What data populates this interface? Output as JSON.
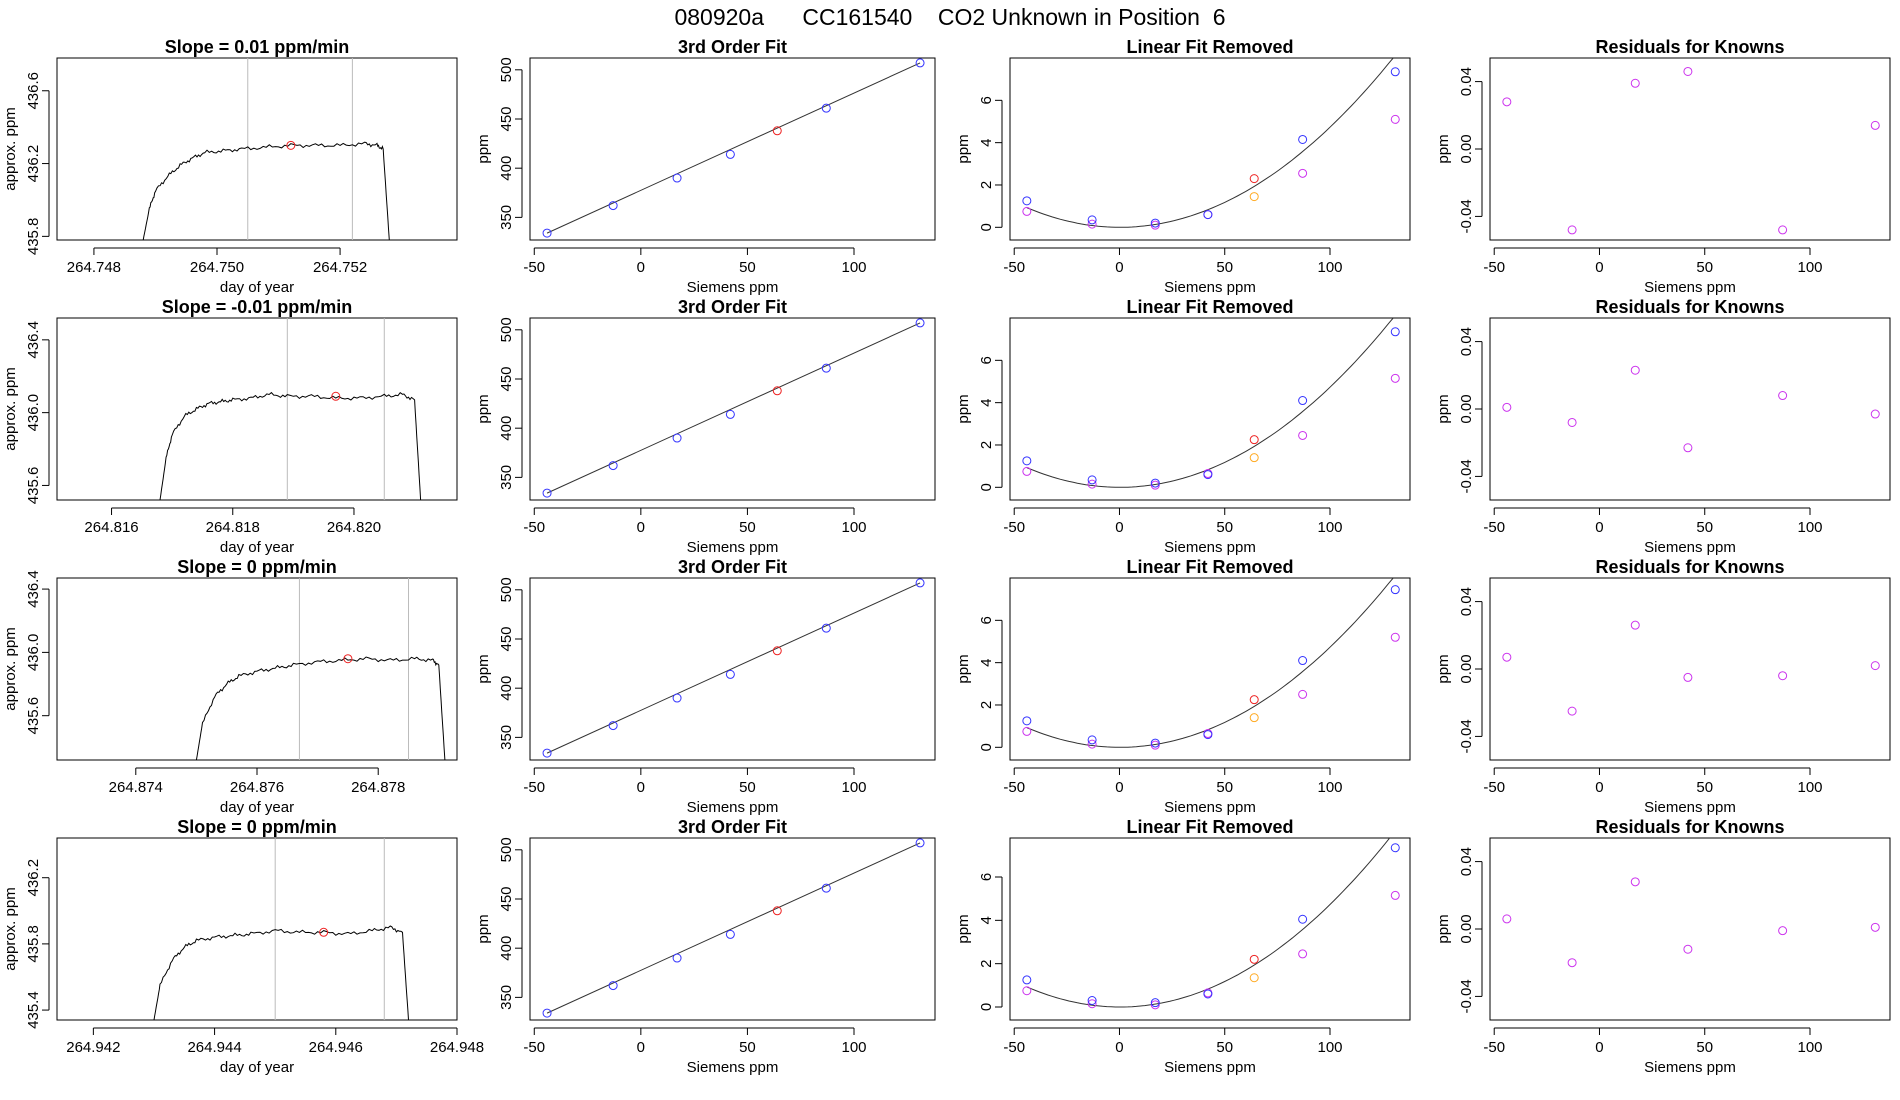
{
  "page": {
    "title": "080920a      CC161540    CO2 Unknown in Position  6"
  },
  "colors": {
    "axis": "#000000",
    "curve": "#333333",
    "vline": "#bbbbbb",
    "blue": "#3333ff",
    "red": "#ee2222",
    "magenta": "#cc33ee",
    "orange": "#ffaa22"
  },
  "chart_data": [
    {
      "type": "line",
      "panel": "time",
      "title": "Slope =  0.01  ppm/min",
      "xlabel": "day of year",
      "ylabel": "approx. ppm",
      "xlim": [
        264.7474,
        264.7539
      ],
      "ylim": [
        435.78,
        436.78
      ],
      "xticks": [
        264.748,
        264.75,
        264.752
      ],
      "xticklabels": [
        "264.748",
        "264.750",
        "264.752"
      ],
      "yticks": [
        435.8,
        436.2,
        436.6
      ],
      "yticklabels": [
        "435.8",
        "436.2",
        "436.6"
      ],
      "vlines": [
        264.7505,
        264.7522
      ],
      "marker": [
        264.7512,
        436.3
      ],
      "x": [
        264.7488,
        264.7489,
        264.749,
        264.7492,
        264.7494,
        264.7496,
        264.7498,
        264.7501,
        264.7504,
        264.7508,
        264.7512,
        264.7516,
        264.752,
        264.7524,
        264.7526,
        264.7527,
        264.7528
      ],
      "y": [
        435.78,
        435.95,
        436.05,
        436.13,
        436.19,
        436.23,
        436.26,
        436.27,
        436.28,
        436.29,
        436.3,
        436.3,
        436.3,
        436.31,
        436.3,
        436.28,
        435.78
      ]
    },
    {
      "type": "scatter",
      "panel": "fit",
      "title": "3rd Order Fit",
      "xlabel": "Siemens ppm",
      "ylabel": "ppm",
      "xlim": [
        -52,
        138
      ],
      "ylim": [
        327,
        512
      ],
      "xticks": [
        -50,
        0,
        50,
        100
      ],
      "yticks": [
        350,
        400,
        450,
        500
      ],
      "knowns": {
        "x": [
          -44,
          -13,
          17,
          42,
          87,
          131
        ],
        "y": [
          334,
          362,
          390,
          414,
          461,
          507
        ]
      },
      "unknown": {
        "x": [
          64
        ],
        "y": [
          438
        ]
      },
      "fit_x": [
        -44,
        131
      ],
      "fit_y": [
        334,
        507
      ]
    },
    {
      "type": "scatter",
      "panel": "linfit",
      "title": "Linear Fit Removed",
      "xlabel": "Siemens ppm",
      "ylabel": "ppm",
      "xlim": [
        -52,
        138
      ],
      "ylim": [
        -0.6,
        8.0
      ],
      "xticks": [
        -50,
        0,
        50,
        100
      ],
      "yticks": [
        0,
        2,
        4,
        6
      ],
      "knowns": {
        "x": [
          -44,
          -13,
          17,
          42,
          87,
          131
        ],
        "y": [
          1.25,
          0.35,
          0.2,
          0.6,
          4.15,
          7.35
        ]
      },
      "magenta": {
        "x": [
          -44,
          -13,
          17,
          42,
          87,
          131
        ],
        "y": [
          0.75,
          0.15,
          0.1,
          0.6,
          2.55,
          5.1
        ]
      },
      "unknown": {
        "x": [
          64
        ],
        "y": [
          2.3
        ]
      },
      "orange": {
        "x": [
          64
        ],
        "y": [
          1.45
        ]
      },
      "curve": {
        "a": 0.000475,
        "b": -0.0002,
        "c": 0
      }
    },
    {
      "type": "scatter",
      "panel": "resid",
      "title": "Residuals for Knowns",
      "xlabel": "Siemens ppm",
      "ylabel": "ppm",
      "xlim": [
        -52,
        138
      ],
      "ylim": [
        -0.054,
        0.054
      ],
      "xticks": [
        -50,
        0,
        50,
        100
      ],
      "yticks": [
        -0.04,
        0.0,
        0.04
      ],
      "yticklabels": [
        "-0.04",
        "0.00",
        "0.04"
      ],
      "x": [
        -44,
        -13,
        17,
        42,
        87,
        131
      ],
      "y": [
        0.028,
        -0.048,
        0.039,
        0.046,
        -0.048,
        0.014
      ]
    },
    {
      "type": "line",
      "panel": "time",
      "title": "Slope =  -0.01  ppm/min",
      "xlabel": "day of year",
      "ylabel": "approx. ppm",
      "xlim": [
        264.8151,
        264.8217
      ],
      "ylim": [
        435.52,
        436.52
      ],
      "xticks": [
        264.816,
        264.818,
        264.82
      ],
      "xticklabels": [
        "264.816",
        "264.818",
        "264.820"
      ],
      "yticks": [
        435.6,
        436.0,
        436.4
      ],
      "yticklabels": [
        "435.6",
        "436.0",
        "436.4"
      ],
      "vlines": [
        264.8189,
        264.8205
      ],
      "marker": [
        264.8197,
        436.09
      ],
      "x": [
        264.8168,
        264.8169,
        264.817,
        264.8172,
        264.8174,
        264.8176,
        264.8178,
        264.818,
        264.8183,
        264.8186,
        264.8189,
        264.8193,
        264.8197,
        264.8201,
        264.8205,
        264.8208,
        264.821,
        264.8211
      ],
      "y": [
        435.52,
        435.75,
        435.88,
        435.98,
        436.02,
        436.05,
        436.06,
        436.07,
        436.08,
        436.1,
        436.09,
        436.09,
        436.08,
        436.08,
        436.09,
        436.1,
        436.07,
        435.52
      ]
    },
    {
      "type": "scatter",
      "panel": "fit",
      "title": "3rd Order Fit",
      "xlabel": "Siemens ppm",
      "ylabel": "ppm",
      "xlim": [
        -52,
        138
      ],
      "ylim": [
        327,
        512
      ],
      "xticks": [
        -50,
        0,
        50,
        100
      ],
      "yticks": [
        350,
        400,
        450,
        500
      ],
      "knowns": {
        "x": [
          -44,
          -13,
          17,
          42,
          87,
          131
        ],
        "y": [
          334,
          362,
          390,
          414,
          461,
          507
        ]
      },
      "unknown": {
        "x": [
          64
        ],
        "y": [
          438
        ]
      },
      "fit_x": [
        -44,
        131
      ],
      "fit_y": [
        334,
        507
      ]
    },
    {
      "type": "scatter",
      "panel": "linfit",
      "title": "Linear Fit Removed",
      "xlabel": "Siemens ppm",
      "ylabel": "ppm",
      "xlim": [
        -52,
        138
      ],
      "ylim": [
        -0.6,
        8.0
      ],
      "xticks": [
        -50,
        0,
        50,
        100
      ],
      "yticks": [
        0,
        2,
        4,
        6
      ],
      "knowns": {
        "x": [
          -44,
          -13,
          17,
          42,
          87,
          131
        ],
        "y": [
          1.25,
          0.35,
          0.2,
          0.6,
          4.1,
          7.35
        ]
      },
      "magenta": {
        "x": [
          -44,
          -13,
          17,
          42,
          87,
          131
        ],
        "y": [
          0.75,
          0.15,
          0.1,
          0.65,
          2.45,
          5.15
        ]
      },
      "unknown": {
        "x": [
          64
        ],
        "y": [
          2.25
        ]
      },
      "orange": {
        "x": [
          64
        ],
        "y": [
          1.4
        ]
      },
      "curve": {
        "a": 0.000475,
        "b": -0.0002,
        "c": 0
      }
    },
    {
      "type": "scatter",
      "panel": "resid",
      "title": "Residuals for Knowns",
      "xlabel": "Siemens ppm",
      "ylabel": "ppm",
      "xlim": [
        -52,
        138
      ],
      "ylim": [
        -0.054,
        0.054
      ],
      "xticks": [
        -50,
        0,
        50,
        100
      ],
      "yticks": [
        -0.04,
        0.0,
        0.04
      ],
      "yticklabels": [
        "-0.04",
        "0.00",
        "0.04"
      ],
      "x": [
        -44,
        -13,
        17,
        42,
        87,
        131
      ],
      "y": [
        0.001,
        -0.008,
        0.023,
        -0.023,
        0.008,
        -0.003
      ]
    },
    {
      "type": "line",
      "panel": "time",
      "title": "Slope =  0  ppm/min",
      "xlabel": "day of year",
      "ylabel": "approx. ppm",
      "xlim": [
        264.8727,
        264.8793
      ],
      "ylim": [
        435.32,
        436.47
      ],
      "xticks": [
        264.874,
        264.876,
        264.878
      ],
      "xticklabels": [
        "264.874",
        "264.876",
        "264.878"
      ],
      "yticks": [
        435.6,
        436.0,
        436.4
      ],
      "yticklabels": [
        "435.6",
        "436.0",
        "436.4"
      ],
      "vlines": [
        264.8767,
        264.8785
      ],
      "marker": [
        264.8775,
        435.96
      ],
      "x": [
        264.875,
        264.8751,
        264.8753,
        264.8755,
        264.8757,
        264.876,
        264.8763,
        264.8766,
        264.877,
        264.8774,
        264.8778,
        264.8782,
        264.8786,
        264.8789,
        264.879,
        264.8791
      ],
      "y": [
        435.32,
        435.55,
        435.72,
        435.8,
        435.85,
        435.88,
        435.9,
        435.92,
        435.94,
        435.95,
        435.96,
        435.95,
        435.96,
        435.95,
        435.92,
        435.32
      ]
    },
    {
      "type": "scatter",
      "panel": "fit",
      "title": "3rd Order Fit",
      "xlabel": "Siemens ppm",
      "ylabel": "ppm",
      "xlim": [
        -52,
        138
      ],
      "ylim": [
        327,
        512
      ],
      "xticks": [
        -50,
        0,
        50,
        100
      ],
      "yticks": [
        350,
        400,
        450,
        500
      ],
      "knowns": {
        "x": [
          -44,
          -13,
          17,
          42,
          87,
          131
        ],
        "y": [
          334,
          362,
          390,
          414,
          461,
          507
        ]
      },
      "unknown": {
        "x": [
          64
        ],
        "y": [
          438
        ]
      },
      "fit_x": [
        -44,
        131
      ],
      "fit_y": [
        334,
        507
      ]
    },
    {
      "type": "scatter",
      "panel": "linfit",
      "title": "Linear Fit Removed",
      "xlabel": "Siemens ppm",
      "ylabel": "ppm",
      "xlim": [
        -52,
        138
      ],
      "ylim": [
        -0.6,
        8.0
      ],
      "xticks": [
        -50,
        0,
        50,
        100
      ],
      "yticks": [
        0,
        2,
        4,
        6
      ],
      "knowns": {
        "x": [
          -44,
          -13,
          17,
          42,
          87,
          131
        ],
        "y": [
          1.25,
          0.35,
          0.2,
          0.6,
          4.1,
          7.45
        ]
      },
      "magenta": {
        "x": [
          -44,
          -13,
          17,
          42,
          87,
          131
        ],
        "y": [
          0.75,
          0.15,
          0.1,
          0.65,
          2.5,
          5.2
        ]
      },
      "unknown": {
        "x": [
          64
        ],
        "y": [
          2.25
        ]
      },
      "orange": {
        "x": [
          64
        ],
        "y": [
          1.4
        ]
      },
      "curve": {
        "a": 0.000475,
        "b": -0.0002,
        "c": 0
      }
    },
    {
      "type": "scatter",
      "panel": "resid",
      "title": "Residuals for Knowns",
      "xlabel": "Siemens ppm",
      "ylabel": "ppm",
      "xlim": [
        -52,
        138
      ],
      "ylim": [
        -0.054,
        0.054
      ],
      "xticks": [
        -50,
        0,
        50,
        100
      ],
      "yticks": [
        -0.04,
        0.0,
        0.04
      ],
      "yticklabels": [
        "-0.04",
        "0.00",
        "0.04"
      ],
      "x": [
        -44,
        -13,
        17,
        42,
        87,
        131
      ],
      "y": [
        0.007,
        -0.025,
        0.026,
        -0.005,
        -0.004,
        0.002
      ]
    },
    {
      "type": "line",
      "panel": "time",
      "title": "Slope =  0  ppm/min",
      "xlabel": "day of year",
      "ylabel": "approx. ppm",
      "xlim": [
        264.9414,
        264.948
      ],
      "ylim": [
        435.34,
        436.44
      ],
      "xticks": [
        264.942,
        264.944,
        264.946,
        264.948
      ],
      "xticklabels": [
        "264.942",
        "264.944",
        "264.946",
        "264.948"
      ],
      "yticks": [
        435.4,
        435.8,
        436.2
      ],
      "yticklabels": [
        "435.4",
        "435.8",
        "436.2"
      ],
      "vlines": [
        264.945,
        264.9468
      ],
      "marker": [
        264.9458,
        435.87
      ],
      "x": [
        264.943,
        264.9431,
        264.9433,
        264.9435,
        264.9437,
        264.944,
        264.9443,
        264.9446,
        264.945,
        264.9454,
        264.9458,
        264.9462,
        264.9466,
        264.9469,
        264.9471,
        264.9472
      ],
      "y": [
        435.34,
        435.55,
        435.7,
        435.78,
        435.82,
        435.84,
        435.85,
        435.86,
        435.88,
        435.87,
        435.87,
        435.86,
        435.88,
        435.9,
        435.87,
        435.34
      ]
    },
    {
      "type": "scatter",
      "panel": "fit",
      "title": "3rd Order Fit",
      "xlabel": "Siemens ppm",
      "ylabel": "ppm",
      "xlim": [
        -52,
        138
      ],
      "ylim": [
        327,
        512
      ],
      "xticks": [
        -50,
        0,
        50,
        100
      ],
      "yticks": [
        350,
        400,
        450,
        500
      ],
      "knowns": {
        "x": [
          -44,
          -13,
          17,
          42,
          87,
          131
        ],
        "y": [
          334,
          362,
          390,
          414,
          461,
          507
        ]
      },
      "unknown": {
        "x": [
          64
        ],
        "y": [
          438
        ]
      },
      "fit_x": [
        -44,
        131
      ],
      "fit_y": [
        334,
        507
      ]
    },
    {
      "type": "scatter",
      "panel": "linfit",
      "title": "Linear Fit Removed",
      "xlabel": "Siemens ppm",
      "ylabel": "ppm",
      "xlim": [
        -52,
        138
      ],
      "ylim": [
        -0.6,
        7.8
      ],
      "xticks": [
        -50,
        0,
        50,
        100
      ],
      "yticks": [
        0,
        2,
        4,
        6
      ],
      "knowns": {
        "x": [
          -44,
          -13,
          17,
          42,
          87,
          131
        ],
        "y": [
          1.25,
          0.3,
          0.2,
          0.6,
          4.05,
          7.35
        ]
      },
      "magenta": {
        "x": [
          -44,
          -13,
          17,
          42,
          87,
          131
        ],
        "y": [
          0.75,
          0.15,
          0.1,
          0.65,
          2.45,
          5.15
        ]
      },
      "unknown": {
        "x": [
          64
        ],
        "y": [
          2.2
        ]
      },
      "orange": {
        "x": [
          64
        ],
        "y": [
          1.35
        ]
      },
      "curve": {
        "a": 0.000475,
        "b": -0.0002,
        "c": 0
      }
    },
    {
      "type": "scatter",
      "panel": "resid",
      "title": "Residuals for Knowns",
      "xlabel": "Siemens ppm",
      "ylabel": "ppm",
      "xlim": [
        -52,
        138
      ],
      "ylim": [
        -0.054,
        0.054
      ],
      "xticks": [
        -50,
        0,
        50,
        100
      ],
      "yticks": [
        -0.04,
        0.0,
        0.04
      ],
      "yticklabels": [
        "-0.04",
        "0.00",
        "0.04"
      ],
      "x": [
        -44,
        -13,
        17,
        42,
        87,
        131
      ],
      "y": [
        0.006,
        -0.02,
        0.028,
        -0.012,
        -0.001,
        0.001
      ]
    }
  ]
}
